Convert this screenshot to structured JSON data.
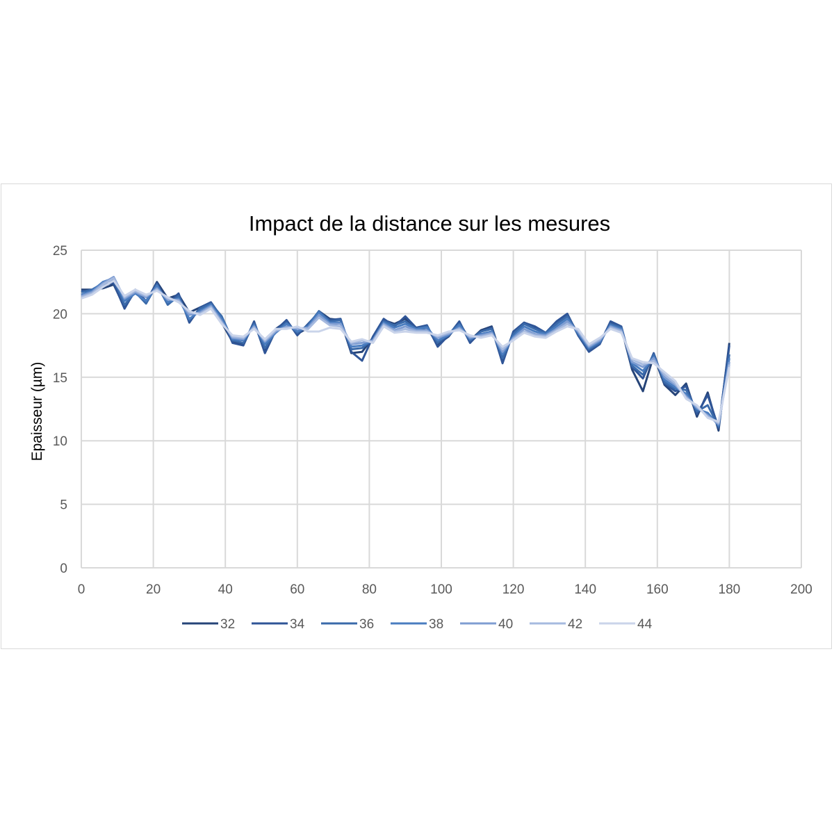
{
  "chart_data": {
    "type": "line",
    "title": "Impact de la distance sur les mesures",
    "xlabel": "",
    "ylabel": "Epaisseur  (µm)",
    "xlim": [
      0,
      200
    ],
    "ylim": [
      0,
      25
    ],
    "x_ticks": [
      "0",
      "20",
      "40",
      "60",
      "80",
      "100",
      "120",
      "140",
      "160",
      "180",
      "200"
    ],
    "y_ticks": [
      "0",
      "5",
      "10",
      "15",
      "20",
      "25"
    ],
    "grid": true,
    "legend_position": "bottom",
    "x": [
      0,
      3,
      6,
      9,
      12,
      15,
      18,
      21,
      24,
      27,
      30,
      33,
      36,
      39,
      42,
      45,
      48,
      51,
      54,
      57,
      60,
      63,
      66,
      69,
      72,
      75,
      78,
      81,
      84,
      87,
      90,
      93,
      96,
      99,
      102,
      105,
      108,
      111,
      114,
      117,
      120,
      123,
      126,
      129,
      132,
      135,
      138,
      141,
      144,
      147,
      150,
      153,
      156,
      159,
      162,
      165,
      168,
      171,
      174,
      177,
      180
    ],
    "series": [
      {
        "name": "32",
        "color": "#264478",
        "values": [
          21.9,
          21.9,
          22.0,
          22.3,
          20.5,
          21.8,
          20.9,
          22.5,
          21.2,
          21.5,
          20.1,
          20.5,
          20.8,
          19.3,
          17.8,
          17.6,
          19.3,
          17.1,
          18.8,
          19.4,
          18.4,
          18.9,
          20.2,
          19.6,
          19.5,
          16.9,
          17.0,
          18.1,
          19.5,
          19.2,
          19.6,
          18.7,
          18.9,
          17.6,
          18.2,
          19.3,
          17.9,
          18.7,
          19.0,
          16.3,
          18.5,
          19.3,
          18.9,
          18.4,
          19.2,
          19.9,
          18.4,
          17.1,
          17.7,
          19.3,
          18.9,
          15.6,
          13.9,
          16.7,
          14.4,
          13.6,
          14.5,
          11.9,
          13.8,
          10.8,
          17.7
        ]
      },
      {
        "name": "34",
        "color": "#2f5597",
        "values": [
          21.8,
          21.7,
          22.3,
          22.4,
          20.4,
          21.9,
          21.0,
          22.4,
          20.8,
          21.6,
          19.3,
          20.5,
          20.9,
          19.7,
          17.7,
          17.5,
          19.4,
          16.9,
          18.7,
          19.5,
          18.3,
          19.2,
          20.1,
          19.5,
          19.6,
          17.0,
          16.3,
          18.2,
          19.6,
          19.0,
          19.8,
          18.9,
          19.1,
          17.4,
          18.3,
          19.4,
          17.7,
          18.6,
          18.9,
          16.1,
          18.6,
          19.3,
          19.0,
          18.5,
          19.4,
          20.0,
          18.3,
          17.0,
          17.6,
          19.4,
          19.0,
          15.8,
          14.9,
          16.9,
          14.5,
          13.9,
          14.3,
          12.1,
          13.6,
          11.0,
          17.5
        ]
      },
      {
        "name": "36",
        "color": "#3a6aaa",
        "values": [
          21.7,
          21.9,
          22.4,
          22.7,
          20.7,
          21.7,
          20.8,
          22.3,
          20.7,
          21.4,
          19.5,
          20.4,
          20.8,
          19.8,
          17.9,
          17.7,
          19.2,
          17.3,
          18.6,
          19.3,
          18.5,
          19.1,
          20.2,
          19.4,
          19.5,
          17.2,
          17.3,
          18.0,
          19.4,
          19.1,
          19.4,
          18.8,
          19.0,
          17.7,
          18.4,
          19.2,
          17.9,
          18.6,
          18.8,
          16.5,
          18.4,
          19.2,
          18.8,
          18.5,
          19.2,
          19.8,
          18.4,
          17.2,
          17.7,
          19.2,
          18.9,
          15.9,
          15.2,
          16.8,
          14.6,
          14.1,
          14.0,
          12.3,
          12.8,
          11.1,
          16.8
        ]
      },
      {
        "name": "38",
        "color": "#4a7dc0",
        "values": [
          21.5,
          21.8,
          22.5,
          22.8,
          21.0,
          21.6,
          21.0,
          22.2,
          20.9,
          21.2,
          19.6,
          20.2,
          20.7,
          19.6,
          18.0,
          17.9,
          19.1,
          17.6,
          18.5,
          19.2,
          18.6,
          19.0,
          20.1,
          19.3,
          19.3,
          17.4,
          17.5,
          17.9,
          19.3,
          18.9,
          19.2,
          18.8,
          18.9,
          17.9,
          18.3,
          19.1,
          18.0,
          18.4,
          18.6,
          16.8,
          18.2,
          19.0,
          18.6,
          18.4,
          19.0,
          19.6,
          18.5,
          17.3,
          17.8,
          19.1,
          18.8,
          16.1,
          15.5,
          16.6,
          14.8,
          14.2,
          13.7,
          12.5,
          12.2,
          11.2,
          16.5
        ]
      },
      {
        "name": "40",
        "color": "#7f9dd2",
        "values": [
          21.4,
          21.7,
          22.4,
          22.9,
          21.2,
          21.7,
          21.3,
          22.0,
          21.1,
          21.1,
          19.9,
          20.1,
          20.6,
          19.4,
          18.1,
          18.0,
          19.0,
          17.8,
          18.6,
          19.0,
          18.8,
          18.9,
          19.9,
          19.2,
          19.2,
          17.6,
          17.7,
          17.9,
          19.2,
          18.7,
          19.0,
          18.7,
          18.7,
          18.1,
          18.4,
          18.9,
          18.1,
          18.3,
          18.5,
          17.0,
          18.1,
          18.8,
          18.4,
          18.3,
          18.8,
          19.4,
          18.6,
          17.4,
          17.9,
          19.0,
          18.7,
          16.2,
          15.8,
          16.5,
          15.0,
          14.4,
          13.5,
          12.6,
          12.0,
          11.3,
          16.2
        ]
      },
      {
        "name": "42",
        "color": "#a6badf",
        "values": [
          21.3,
          21.6,
          22.3,
          22.8,
          21.3,
          21.8,
          21.4,
          21.9,
          21.2,
          21.0,
          20.1,
          20.0,
          20.5,
          19.3,
          18.2,
          18.1,
          18.9,
          17.9,
          18.7,
          18.9,
          18.9,
          18.8,
          19.7,
          19.1,
          19.0,
          17.7,
          17.9,
          17.8,
          19.1,
          18.6,
          18.8,
          18.6,
          18.6,
          18.2,
          18.5,
          18.8,
          18.2,
          18.2,
          18.4,
          17.2,
          18.0,
          18.6,
          18.3,
          18.2,
          18.7,
          19.2,
          18.7,
          17.5,
          18.0,
          18.9,
          18.6,
          16.4,
          16.0,
          16.3,
          15.2,
          14.5,
          13.4,
          12.7,
          11.9,
          11.4,
          16.0
        ]
      },
      {
        "name": "44",
        "color": "#cad4ea",
        "values": [
          21.2,
          21.5,
          22.1,
          22.6,
          21.4,
          21.9,
          21.5,
          21.8,
          21.3,
          20.9,
          20.2,
          19.9,
          20.4,
          19.2,
          18.3,
          18.2,
          18.8,
          18.0,
          18.8,
          18.8,
          19.0,
          18.6,
          18.6,
          18.9,
          18.8,
          17.8,
          18.0,
          17.7,
          19.0,
          18.5,
          18.6,
          18.5,
          18.5,
          18.3,
          18.6,
          18.7,
          18.3,
          18.1,
          18.3,
          17.4,
          17.9,
          18.5,
          18.2,
          18.1,
          18.6,
          19.0,
          18.8,
          17.6,
          18.1,
          18.8,
          18.5,
          16.5,
          16.2,
          16.1,
          15.4,
          14.7,
          13.3,
          12.8,
          11.8,
          11.5,
          15.8
        ]
      }
    ]
  }
}
